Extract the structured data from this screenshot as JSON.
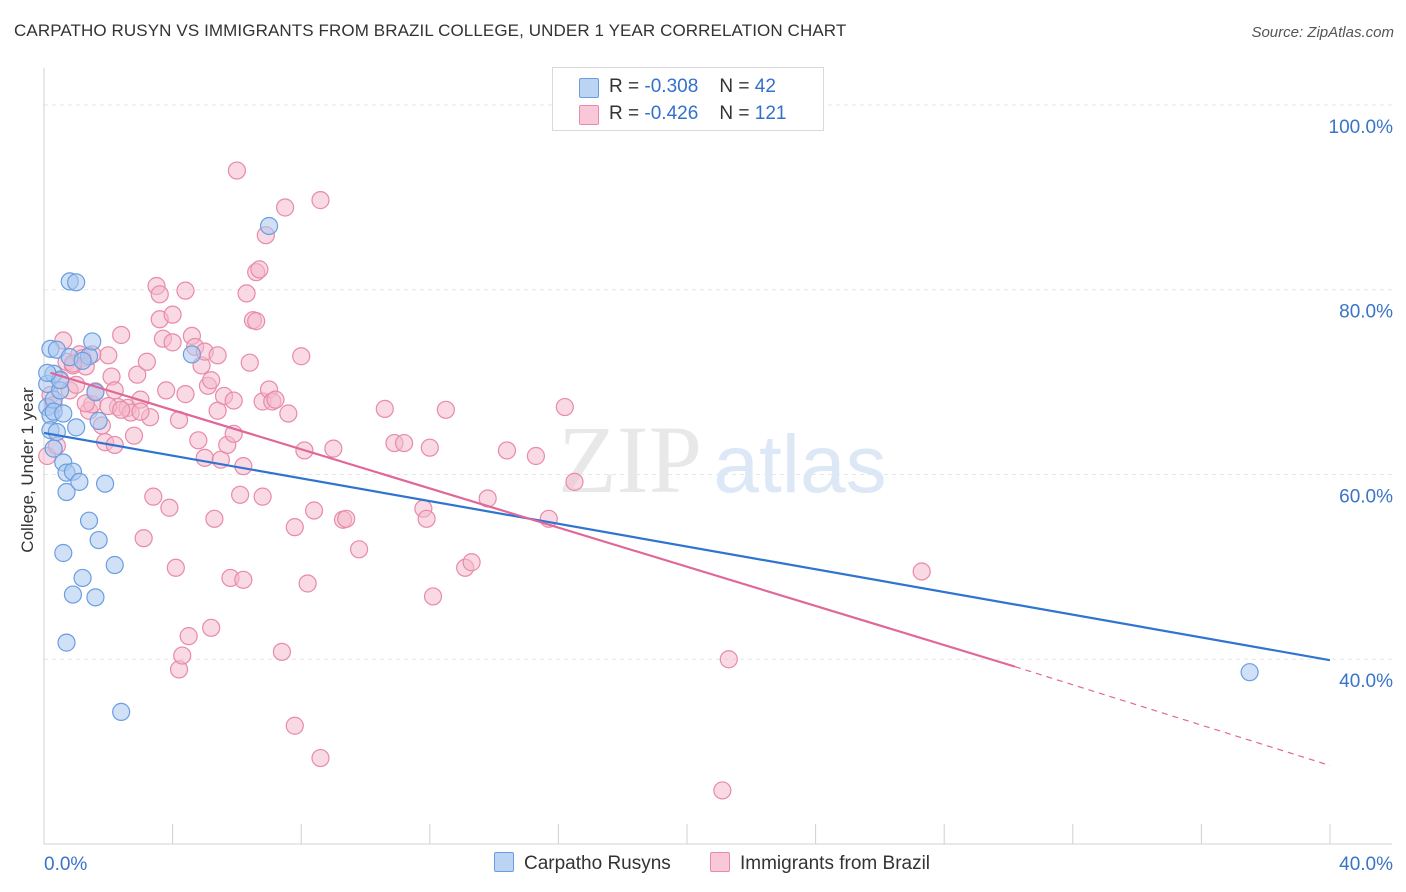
{
  "title": "CARPATHO RUSYN VS IMMIGRANTS FROM BRAZIL COLLEGE, UNDER 1 YEAR CORRELATION CHART",
  "source": "Source: ZipAtlas.com",
  "watermark": {
    "zip": "ZIP",
    "atlas": "atlas"
  },
  "colors": {
    "blue_fill": "#a9c8f0",
    "blue_stroke": "#6a9ee0",
    "blue_line": "#2f74d0",
    "pink_fill": "#f4b9cc",
    "pink_stroke": "#e88aa8",
    "pink_line": "#e06898",
    "axis_text": "#3a74c8",
    "grid": "#e6e6e6"
  },
  "legend": {
    "series1": {
      "r_label": "R =",
      "r_value": "-0.308",
      "n_label": "N =",
      "n_value": "42"
    },
    "series2": {
      "r_label": "R =",
      "r_value": "-0.426",
      "n_label": "N =",
      "n_value": "121"
    }
  },
  "chart_data": {
    "type": "scatter",
    "title": "CARPATHO RUSYN VS IMMIGRANTS FROM BRAZIL COLLEGE, UNDER 1 YEAR CORRELATION CHART",
    "xlabel": "",
    "ylabel": "College, Under 1 year",
    "xlim": [
      0,
      40
    ],
    "ylim": [
      20,
      104
    ],
    "x_tick_labels": [
      "0.0%",
      "40.0%"
    ],
    "y_tick_values": [
      40,
      60,
      80,
      100
    ],
    "y_tick_labels": [
      "40.0%",
      "60.0%",
      "80.0%",
      "100.0%"
    ],
    "grid": true,
    "series": [
      {
        "name": "Carpatho Rusyns",
        "r": -0.308,
        "n": 42,
        "trend": {
          "x": [
            0,
            40
          ],
          "y": [
            64.5,
            39.9
          ]
        },
        "points": [
          [
            0.1,
            67.3
          ],
          [
            0.1,
            69.8
          ],
          [
            0.2,
            73.6
          ],
          [
            0.2,
            66.4
          ],
          [
            0.2,
            64.8
          ],
          [
            0.3,
            68.1
          ],
          [
            0.3,
            70.9
          ],
          [
            0.3,
            66.8
          ],
          [
            0.3,
            62.8
          ],
          [
            0.4,
            64.6
          ],
          [
            0.4,
            73.5
          ],
          [
            0.5,
            69.1
          ],
          [
            0.6,
            66.6
          ],
          [
            0.6,
            61.3
          ],
          [
            0.7,
            60.2
          ],
          [
            0.7,
            58.1
          ],
          [
            0.8,
            72.7
          ],
          [
            0.9,
            60.3
          ],
          [
            1.0,
            65.1
          ],
          [
            1.1,
            59.2
          ],
          [
            1.2,
            48.8
          ],
          [
            0.9,
            47.0
          ],
          [
            0.6,
            51.5
          ],
          [
            0.7,
            41.8
          ],
          [
            0.8,
            80.9
          ],
          [
            1.0,
            80.8
          ],
          [
            1.4,
            72.8
          ],
          [
            1.4,
            55.0
          ],
          [
            1.5,
            74.4
          ],
          [
            1.6,
            68.9
          ],
          [
            1.7,
            65.8
          ],
          [
            1.6,
            46.7
          ],
          [
            1.7,
            52.9
          ],
          [
            1.9,
            59.0
          ],
          [
            2.2,
            50.2
          ],
          [
            2.4,
            34.3
          ],
          [
            1.2,
            72.3
          ],
          [
            0.5,
            70.2
          ],
          [
            4.6,
            73.0
          ],
          [
            7.0,
            86.9
          ],
          [
            0.1,
            71.0
          ],
          [
            37.5,
            38.6
          ]
        ]
      },
      {
        "name": "Immigrants from Brazil",
        "r": -0.426,
        "n": 121,
        "trend": {
          "x": [
            0.2,
            30.2
          ],
          "y": [
            71.0,
            39.2
          ]
        },
        "trend_dashed": {
          "x": [
            30.2,
            40
          ],
          "y": [
            39.2,
            28.5
          ]
        },
        "points": [
          [
            0.1,
            62.0
          ],
          [
            0.2,
            68.6
          ],
          [
            0.3,
            67.5
          ],
          [
            0.4,
            63.1
          ],
          [
            0.5,
            70.3
          ],
          [
            0.6,
            74.5
          ],
          [
            0.7,
            72.2
          ],
          [
            0.8,
            69.1
          ],
          [
            0.9,
            71.8
          ],
          [
            1.0,
            69.7
          ],
          [
            1.1,
            73.0
          ],
          [
            1.2,
            72.6
          ],
          [
            1.3,
            71.7
          ],
          [
            1.4,
            66.9
          ],
          [
            1.5,
            67.6
          ],
          [
            1.6,
            69.0
          ],
          [
            1.8,
            65.3
          ],
          [
            1.9,
            63.5
          ],
          [
            2.0,
            72.9
          ],
          [
            2.1,
            70.6
          ],
          [
            2.2,
            69.1
          ],
          [
            2.3,
            67.3
          ],
          [
            2.4,
            75.1
          ],
          [
            2.6,
            67.2
          ],
          [
            2.7,
            66.7
          ],
          [
            2.8,
            64.2
          ],
          [
            2.9,
            70.8
          ],
          [
            3.0,
            68.1
          ],
          [
            3.1,
            53.1
          ],
          [
            3.2,
            72.2
          ],
          [
            3.3,
            66.2
          ],
          [
            3.4,
            57.6
          ],
          [
            3.5,
            80.4
          ],
          [
            3.6,
            76.8
          ],
          [
            3.7,
            74.7
          ],
          [
            3.8,
            69.1
          ],
          [
            3.9,
            56.4
          ],
          [
            4.0,
            77.3
          ],
          [
            4.1,
            49.9
          ],
          [
            4.2,
            65.9
          ],
          [
            4.2,
            38.9
          ],
          [
            4.3,
            40.4
          ],
          [
            4.4,
            79.9
          ],
          [
            4.5,
            42.5
          ],
          [
            4.6,
            75.0
          ],
          [
            4.7,
            73.8
          ],
          [
            4.8,
            63.7
          ],
          [
            4.9,
            71.8
          ],
          [
            5.0,
            61.8
          ],
          [
            5.1,
            69.6
          ],
          [
            5.2,
            43.4
          ],
          [
            5.3,
            55.2
          ],
          [
            5.4,
            66.9
          ],
          [
            5.5,
            61.6
          ],
          [
            5.6,
            68.5
          ],
          [
            5.7,
            63.2
          ],
          [
            5.8,
            48.8
          ],
          [
            5.9,
            64.4
          ],
          [
            6.0,
            92.9
          ],
          [
            6.1,
            57.8
          ],
          [
            6.2,
            48.6
          ],
          [
            6.3,
            79.6
          ],
          [
            6.4,
            72.1
          ],
          [
            6.5,
            76.7
          ],
          [
            6.6,
            81.9
          ],
          [
            6.7,
            82.2
          ],
          [
            6.8,
            67.9
          ],
          [
            6.9,
            85.9
          ],
          [
            7.0,
            69.2
          ],
          [
            7.1,
            67.9
          ],
          [
            7.4,
            40.8
          ],
          [
            7.5,
            88.9
          ],
          [
            7.6,
            66.6
          ],
          [
            7.8,
            54.3
          ],
          [
            7.8,
            32.8
          ],
          [
            8.0,
            72.8
          ],
          [
            8.1,
            62.6
          ],
          [
            8.2,
            48.2
          ],
          [
            8.4,
            56.1
          ],
          [
            8.6,
            89.7
          ],
          [
            8.6,
            29.3
          ],
          [
            9.0,
            62.8
          ],
          [
            9.3,
            55.1
          ],
          [
            9.4,
            55.2
          ],
          [
            9.8,
            51.9
          ],
          [
            10.6,
            67.1
          ],
          [
            10.9,
            63.4
          ],
          [
            11.2,
            63.4
          ],
          [
            11.8,
            56.3
          ],
          [
            11.9,
            55.2
          ],
          [
            12.0,
            62.9
          ],
          [
            12.1,
            46.8
          ],
          [
            12.5,
            67.0
          ],
          [
            13.1,
            49.9
          ],
          [
            13.3,
            50.5
          ],
          [
            13.8,
            57.4
          ],
          [
            14.4,
            62.6
          ],
          [
            15.3,
            62.0
          ],
          [
            15.7,
            55.2
          ],
          [
            16.2,
            67.3
          ],
          [
            16.5,
            59.2
          ],
          [
            21.3,
            40.0
          ],
          [
            21.1,
            25.8
          ],
          [
            27.3,
            49.5
          ],
          [
            1.3,
            67.7
          ],
          [
            2.0,
            67.4
          ],
          [
            3.6,
            79.5
          ],
          [
            4.0,
            74.3
          ],
          [
            5.0,
            73.3
          ],
          [
            5.4,
            72.9
          ],
          [
            5.9,
            68.0
          ],
          [
            6.2,
            60.9
          ],
          [
            6.6,
            76.6
          ],
          [
            7.2,
            68.1
          ],
          [
            2.4,
            67.0
          ],
          [
            1.5,
            73.0
          ],
          [
            0.9,
            72.0
          ],
          [
            3.0,
            66.8
          ],
          [
            4.4,
            68.7
          ],
          [
            6.8,
            57.6
          ],
          [
            5.2,
            70.2
          ],
          [
            2.2,
            63.2
          ]
        ]
      }
    ]
  }
}
